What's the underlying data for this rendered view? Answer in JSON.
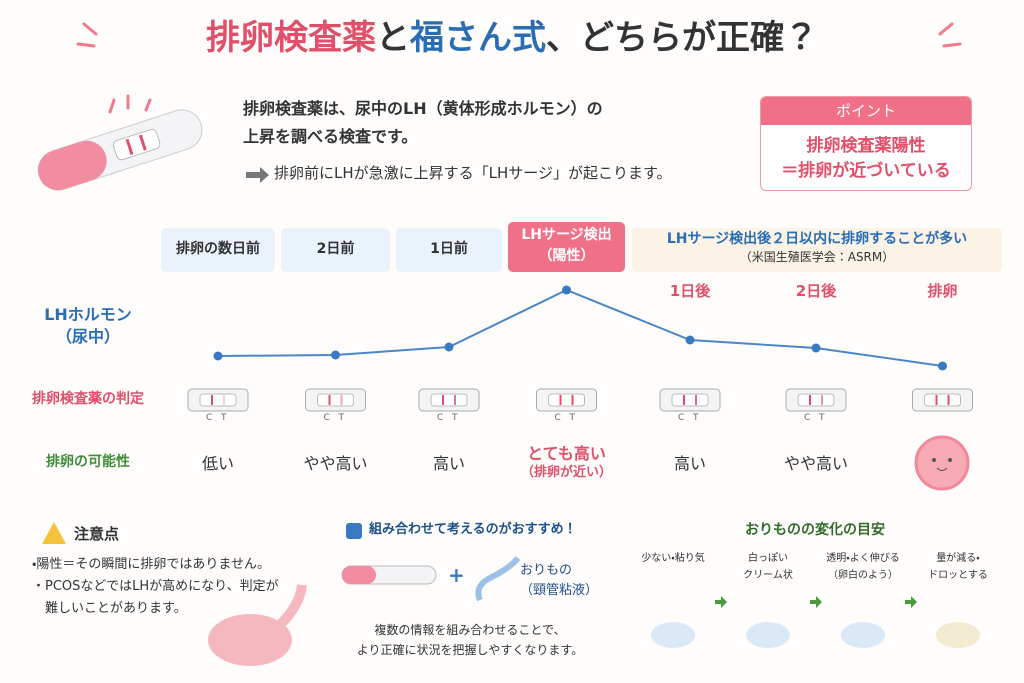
{
  "title_parts": [
    "排卵検査薬",
    "と",
    "福さん式",
    "、どちらが正確？"
  ],
  "intro": {
    "lines": [
      "排卵検査薬は、尿中のLH（黄体形成ホルモン）の",
      "上昇を調べる検査です。"
    ],
    "note": "排卵前にLHが急激に上昇する「LHサージ」が起こります。"
  },
  "point": {
    "label": "ポイント",
    "lines": [
      "排卵検査薬陽性",
      "＝排卵が近づいている"
    ]
  },
  "table": {
    "headers": [
      [
        "排卵の数日前"
      ],
      [
        "2日前"
      ],
      [
        "1日前"
      ],
      [
        "LHサージ検出",
        "（陽性）"
      ]
    ],
    "after_group": [
      "LHサージ検出後２日以内に排卵することが多い",
      "（米国生殖医学会：ASRM）"
    ],
    "after_headers": [
      "1日後",
      "2日後",
      "排卵"
    ],
    "row_labels": [
      [
        "LHホルモン",
        "（尿中）"
      ],
      [
        "排卵検査薬の判定"
      ],
      [
        "排卵の可能性"
      ]
    ],
    "strip_c": "C",
    "strip_t": "T",
    "possibility": [
      [
        "低い"
      ],
      [
        "やや高い"
      ],
      [
        "高い"
      ],
      [
        "とても高い",
        "（排卵が近い）"
      ],
      [
        "高い"
      ],
      [
        "やや高い"
      ]
    ]
  },
  "caution": {
    "title": "注意点",
    "items": [
      [
        "・陽性＝その瞬間に排卵ではありません。"
      ],
      [
        "・PCOSなどではLHが高めになり、判定が",
        "　難しいことがあります。"
      ]
    ]
  },
  "combine": {
    "title": "組み合わせて考えるのがおすすめ！",
    "plus": "+",
    "discharge": [
      "おりもの",
      "（頸管粘液）"
    ],
    "lines": [
      "複数の情報を組み合わせることで、",
      "より正確に状況を把握しやすくなります。"
    ]
  },
  "discharge": {
    "title": "おりものの変化の目安",
    "stages": [
      [
        "少ない・粘り気"
      ],
      [
        "白っぽい",
        "クリーム状"
      ],
      [
        "透明・よく伸びる",
        "（卵白のよう）"
      ],
      [
        "量が減る・",
        "ドロッとする"
      ]
    ]
  }
}
